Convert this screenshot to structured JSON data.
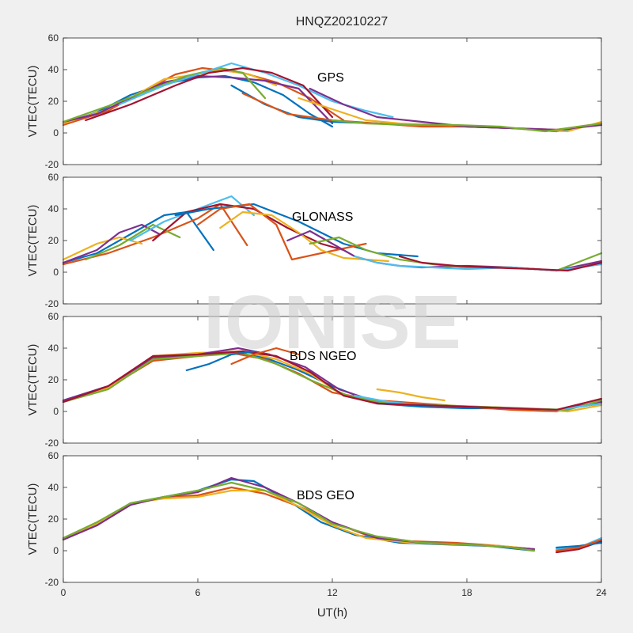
{
  "figure": {
    "title": "HNQZ20210227",
    "watermark": "IONISE",
    "xlabel": "UT(h)",
    "colors": [
      "#0072BD",
      "#D95319",
      "#EDB120",
      "#7E2F8E",
      "#77AC30",
      "#4DBEEE",
      "#A2142F"
    ]
  },
  "chart_data": [
    {
      "type": "line",
      "annotation": "GPS",
      "ylabel": "VTEC(TECU)",
      "xlim": [
        0,
        24
      ],
      "ylim": [
        -20,
        60
      ],
      "xticks": [
        0,
        6,
        12,
        18,
        24
      ],
      "yticks": [
        -20,
        0,
        20,
        40,
        60
      ],
      "series": [
        {
          "x": [
            0,
            1.5,
            3,
            4.5,
            6,
            7.2,
            8.5,
            9.8,
            11,
            12
          ],
          "y": [
            6,
            13,
            24,
            31,
            35,
            36,
            32,
            24,
            12,
            4
          ]
        },
        {
          "x": [
            0,
            2,
            3.5,
            5,
            6.2,
            8,
            9.5,
            11,
            12.5
          ],
          "y": [
            5,
            14,
            26,
            37,
            41,
            38,
            32,
            22,
            8
          ]
        },
        {
          "x": [
            0,
            2,
            3.5,
            4.5,
            6,
            7,
            8.3,
            9.5
          ],
          "y": [
            6,
            15,
            26,
            34,
            37,
            40,
            37,
            30
          ]
        },
        {
          "x": [
            0,
            1.5,
            3,
            4.5,
            6,
            7.5,
            9,
            10.5,
            12
          ],
          "y": [
            7,
            12,
            22,
            32,
            36,
            35,
            33,
            28,
            6
          ]
        },
        {
          "x": [
            0,
            2,
            4,
            5.5,
            7,
            8,
            9
          ],
          "y": [
            7,
            17,
            28,
            36,
            41,
            38,
            22
          ]
        },
        {
          "x": [
            2.5,
            4.5,
            6,
            7.5,
            9,
            10.5,
            12,
            13.5,
            14.7
          ],
          "y": [
            18,
            30,
            37,
            44,
            38,
            30,
            20,
            14,
            10
          ]
        },
        {
          "x": [
            1,
            3,
            5,
            6.5,
            8,
            9.3,
            10.7,
            12
          ],
          "y": [
            8,
            18,
            30,
            38,
            41,
            38,
            30,
            10
          ]
        },
        {
          "x": [
            7.5,
            9,
            10.5,
            12,
            14,
            16,
            18,
            20,
            22,
            24
          ],
          "y": [
            30,
            18,
            10,
            7,
            6,
            5,
            4,
            3,
            1,
            6
          ]
        },
        {
          "x": [
            8,
            10,
            12,
            14,
            16,
            18,
            20,
            22,
            24
          ],
          "y": [
            25,
            12,
            8,
            6,
            4,
            4,
            3,
            2,
            6
          ]
        },
        {
          "x": [
            10.5,
            12,
            13.5,
            15,
            17,
            19,
            21,
            22.5,
            24
          ],
          "y": [
            22,
            15,
            8,
            6,
            5,
            4,
            2,
            1,
            7
          ]
        },
        {
          "x": [
            11,
            12.5,
            14,
            16,
            18,
            20,
            22,
            24
          ],
          "y": [
            28,
            18,
            10,
            7,
            4,
            3,
            2,
            5
          ]
        },
        {
          "x": [
            12,
            13.5,
            15.5,
            17.5,
            19.5,
            21.5,
            24
          ],
          "y": [
            8,
            6,
            5,
            5,
            4,
            1,
            6
          ]
        }
      ]
    },
    {
      "type": "line",
      "annotation": "GLONASS",
      "ylabel": "VTEC(TECU)",
      "xlim": [
        0,
        24
      ],
      "ylim": [
        -20,
        60
      ],
      "xticks": [
        0,
        6,
        12,
        18,
        24
      ],
      "yticks": [
        -20,
        0,
        20,
        40,
        60
      ],
      "series": [
        {
          "x": [
            0,
            1.5,
            3,
            4.5,
            5.5,
            6.7
          ],
          "y": [
            6,
            12,
            24,
            36,
            38,
            14
          ]
        },
        {
          "x": [
            0,
            2,
            4,
            6,
            7,
            8.2
          ],
          "y": [
            5,
            12,
            22,
            34,
            43,
            17
          ]
        },
        {
          "x": [
            0,
            1.5,
            2.5,
            3.5
          ],
          "y": [
            8,
            18,
            22,
            18
          ]
        },
        {
          "x": [
            0,
            1.5,
            2.5,
            3.5,
            4.3
          ],
          "y": [
            6,
            14,
            25,
            30,
            24
          ]
        },
        {
          "x": [
            1,
            2.5,
            4,
            5.2
          ],
          "y": [
            8,
            17,
            30,
            22
          ]
        },
        {
          "x": [
            3,
            4.5,
            6,
            7.5,
            8.5
          ],
          "y": [
            20,
            32,
            40,
            48,
            36
          ]
        },
        {
          "x": [
            4,
            5.5,
            7,
            8.5,
            10,
            11.5,
            12.5
          ],
          "y": [
            20,
            38,
            43,
            40,
            28,
            18,
            14
          ]
        },
        {
          "x": [
            5,
            6.5,
            8.5,
            10.5,
            12.5,
            14,
            15.8
          ],
          "y": [
            36,
            40,
            43,
            32,
            18,
            12,
            10
          ]
        },
        {
          "x": [
            6,
            7,
            8.3,
            9.5,
            10.2,
            11.5,
            12.5,
            13.5
          ],
          "y": [
            30,
            40,
            43,
            30,
            8,
            12,
            15,
            18
          ]
        },
        {
          "x": [
            7,
            8,
            9.3,
            10.5,
            11.5,
            12.5,
            13.5,
            14.5
          ],
          "y": [
            28,
            38,
            36,
            25,
            14,
            9,
            8,
            7
          ]
        },
        {
          "x": [
            10,
            11,
            12,
            13,
            14,
            15,
            16,
            18,
            20,
            22,
            24
          ],
          "y": [
            20,
            26,
            18,
            10,
            6,
            4,
            3,
            4,
            3,
            1,
            7
          ]
        },
        {
          "x": [
            11,
            12.3,
            13.5,
            15,
            16.5,
            18,
            20,
            22,
            24
          ],
          "y": [
            18,
            22,
            14,
            8,
            5,
            3,
            3,
            1,
            12
          ]
        },
        {
          "x": [
            13,
            14,
            15,
            16.5,
            18,
            20,
            22,
            24
          ],
          "y": [
            10,
            6,
            4,
            3,
            2,
            3,
            1,
            5
          ]
        },
        {
          "x": [
            15,
            16,
            17.5,
            19,
            21,
            22.5,
            24
          ],
          "y": [
            10,
            6,
            4,
            3,
            2,
            1,
            6
          ]
        }
      ]
    },
    {
      "type": "line",
      "annotation": "BDS NGEO",
      "ylabel": "VTEC(TECU)",
      "xlim": [
        0,
        24
      ],
      "ylim": [
        -20,
        60
      ],
      "xticks": [
        0,
        6,
        12,
        18,
        24
      ],
      "yticks": [
        -20,
        0,
        20,
        40,
        60
      ],
      "series": [
        {
          "x": [
            0,
            2,
            4,
            6,
            7.5,
            9,
            10.5,
            12,
            14,
            16,
            18,
            20,
            22,
            24
          ],
          "y": [
            7,
            16,
            34,
            36,
            37,
            34,
            26,
            16,
            5,
            3,
            2,
            2,
            1,
            5
          ]
        },
        {
          "x": [
            0,
            2,
            4,
            6,
            7.5,
            9,
            10.5,
            12,
            14,
            16,
            18,
            20,
            22,
            24
          ],
          "y": [
            6,
            15,
            32,
            35,
            37,
            33,
            24,
            12,
            7,
            5,
            3,
            1,
            0,
            6
          ]
        },
        {
          "x": [
            0,
            2,
            4,
            6,
            8,
            9.5,
            11,
            12.5,
            14.5,
            16.5,
            18.5,
            20.5,
            22.5,
            24
          ],
          "y": [
            6,
            15,
            35,
            37,
            38,
            33,
            24,
            10,
            5,
            4,
            3,
            2,
            0,
            4
          ]
        },
        {
          "x": [
            0,
            2,
            4,
            6,
            7.8,
            9.2,
            10.8,
            12.3,
            14,
            16,
            18,
            20,
            22,
            24
          ],
          "y": [
            7,
            16,
            34,
            36,
            40,
            36,
            28,
            14,
            6,
            4,
            3,
            2,
            1,
            6
          ]
        },
        {
          "x": [
            0,
            2,
            4,
            6,
            8,
            9.5,
            11,
            12.7,
            14.5,
            16.5,
            18.5,
            20.5,
            22.5,
            24
          ],
          "y": [
            6,
            14,
            33,
            35,
            37,
            30,
            20,
            10,
            5,
            4,
            3,
            2,
            1,
            7
          ]
        },
        {
          "x": [
            13,
            14.5,
            16,
            18,
            20,
            22,
            24
          ],
          "y": [
            10,
            6,
            4,
            3,
            2,
            1,
            5
          ]
        },
        {
          "x": [
            0,
            2,
            4,
            6,
            8,
            9.5,
            11,
            12.5,
            14,
            16,
            18,
            20,
            22,
            24
          ],
          "y": [
            6,
            16,
            35,
            36,
            38,
            35,
            25,
            10,
            5,
            4,
            3,
            2,
            1,
            8
          ]
        },
        {
          "x": [
            5.5,
            6.5,
            7.5,
            8.5
          ],
          "y": [
            26,
            30,
            36,
            38
          ]
        },
        {
          "x": [
            7.5,
            8.5,
            9.5,
            10.5
          ],
          "y": [
            30,
            36,
            40,
            36
          ]
        },
        {
          "x": [
            14,
            15,
            16,
            17
          ],
          "y": [
            14,
            12,
            9,
            7
          ]
        }
      ]
    },
    {
      "type": "line",
      "annotation": "BDS GEO",
      "ylabel": "VTEC(TECU)",
      "xlim": [
        0,
        24
      ],
      "ylim": [
        -20,
        60
      ],
      "xticks": [
        0,
        6,
        12,
        18,
        24
      ],
      "yticks": [
        -20,
        0,
        20,
        40,
        60
      ],
      "series": [
        {
          "x": [
            0,
            1.5,
            3,
            4.5,
            6,
            7.5,
            8.5,
            10,
            11.5,
            13,
            15,
            17,
            19,
            21
          ],
          "y": [
            8,
            17,
            30,
            34,
            38,
            45,
            44,
            32,
            18,
            10,
            5,
            4,
            3,
            0
          ]
        },
        {
          "x": [
            0,
            1.5,
            3,
            4.5,
            6,
            7.5,
            9,
            10.5,
            12,
            13.5,
            15.5,
            17.5,
            19.5,
            21
          ],
          "y": [
            7,
            16,
            29,
            34,
            35,
            40,
            36,
            28,
            18,
            10,
            6,
            5,
            3,
            1
          ]
        },
        {
          "x": [
            0,
            1.5,
            3,
            4.5,
            6,
            7.5,
            9,
            10.5,
            12,
            13.5,
            15.5,
            17.5,
            19.5,
            21
          ],
          "y": [
            8,
            17,
            30,
            33,
            34,
            38,
            38,
            28,
            16,
            8,
            5,
            4,
            3,
            1
          ]
        },
        {
          "x": [
            0,
            1.5,
            3,
            4.5,
            6,
            7.5,
            9,
            10.5,
            12,
            14,
            16,
            18,
            20,
            21
          ],
          "y": [
            7,
            16,
            29,
            34,
            37,
            46,
            40,
            30,
            18,
            8,
            5,
            4,
            2,
            1
          ]
        },
        {
          "x": [
            0,
            1.5,
            3,
            4.5,
            6,
            7.5,
            9,
            10.5,
            12,
            14,
            16,
            18,
            20,
            21
          ],
          "y": [
            8,
            18,
            30,
            34,
            38,
            43,
            38,
            30,
            17,
            9,
            5,
            4,
            2,
            0
          ]
        },
        {
          "x": [
            22,
            23,
            24
          ],
          "y": [
            1,
            2,
            8
          ]
        },
        {
          "x": [
            22,
            23,
            24
          ],
          "y": [
            -1,
            1,
            6
          ]
        },
        {
          "x": [
            22,
            23,
            24
          ],
          "y": [
            2,
            3,
            5
          ]
        },
        {
          "x": [
            22,
            23,
            24
          ],
          "y": [
            0,
            2,
            7
          ]
        }
      ]
    }
  ]
}
